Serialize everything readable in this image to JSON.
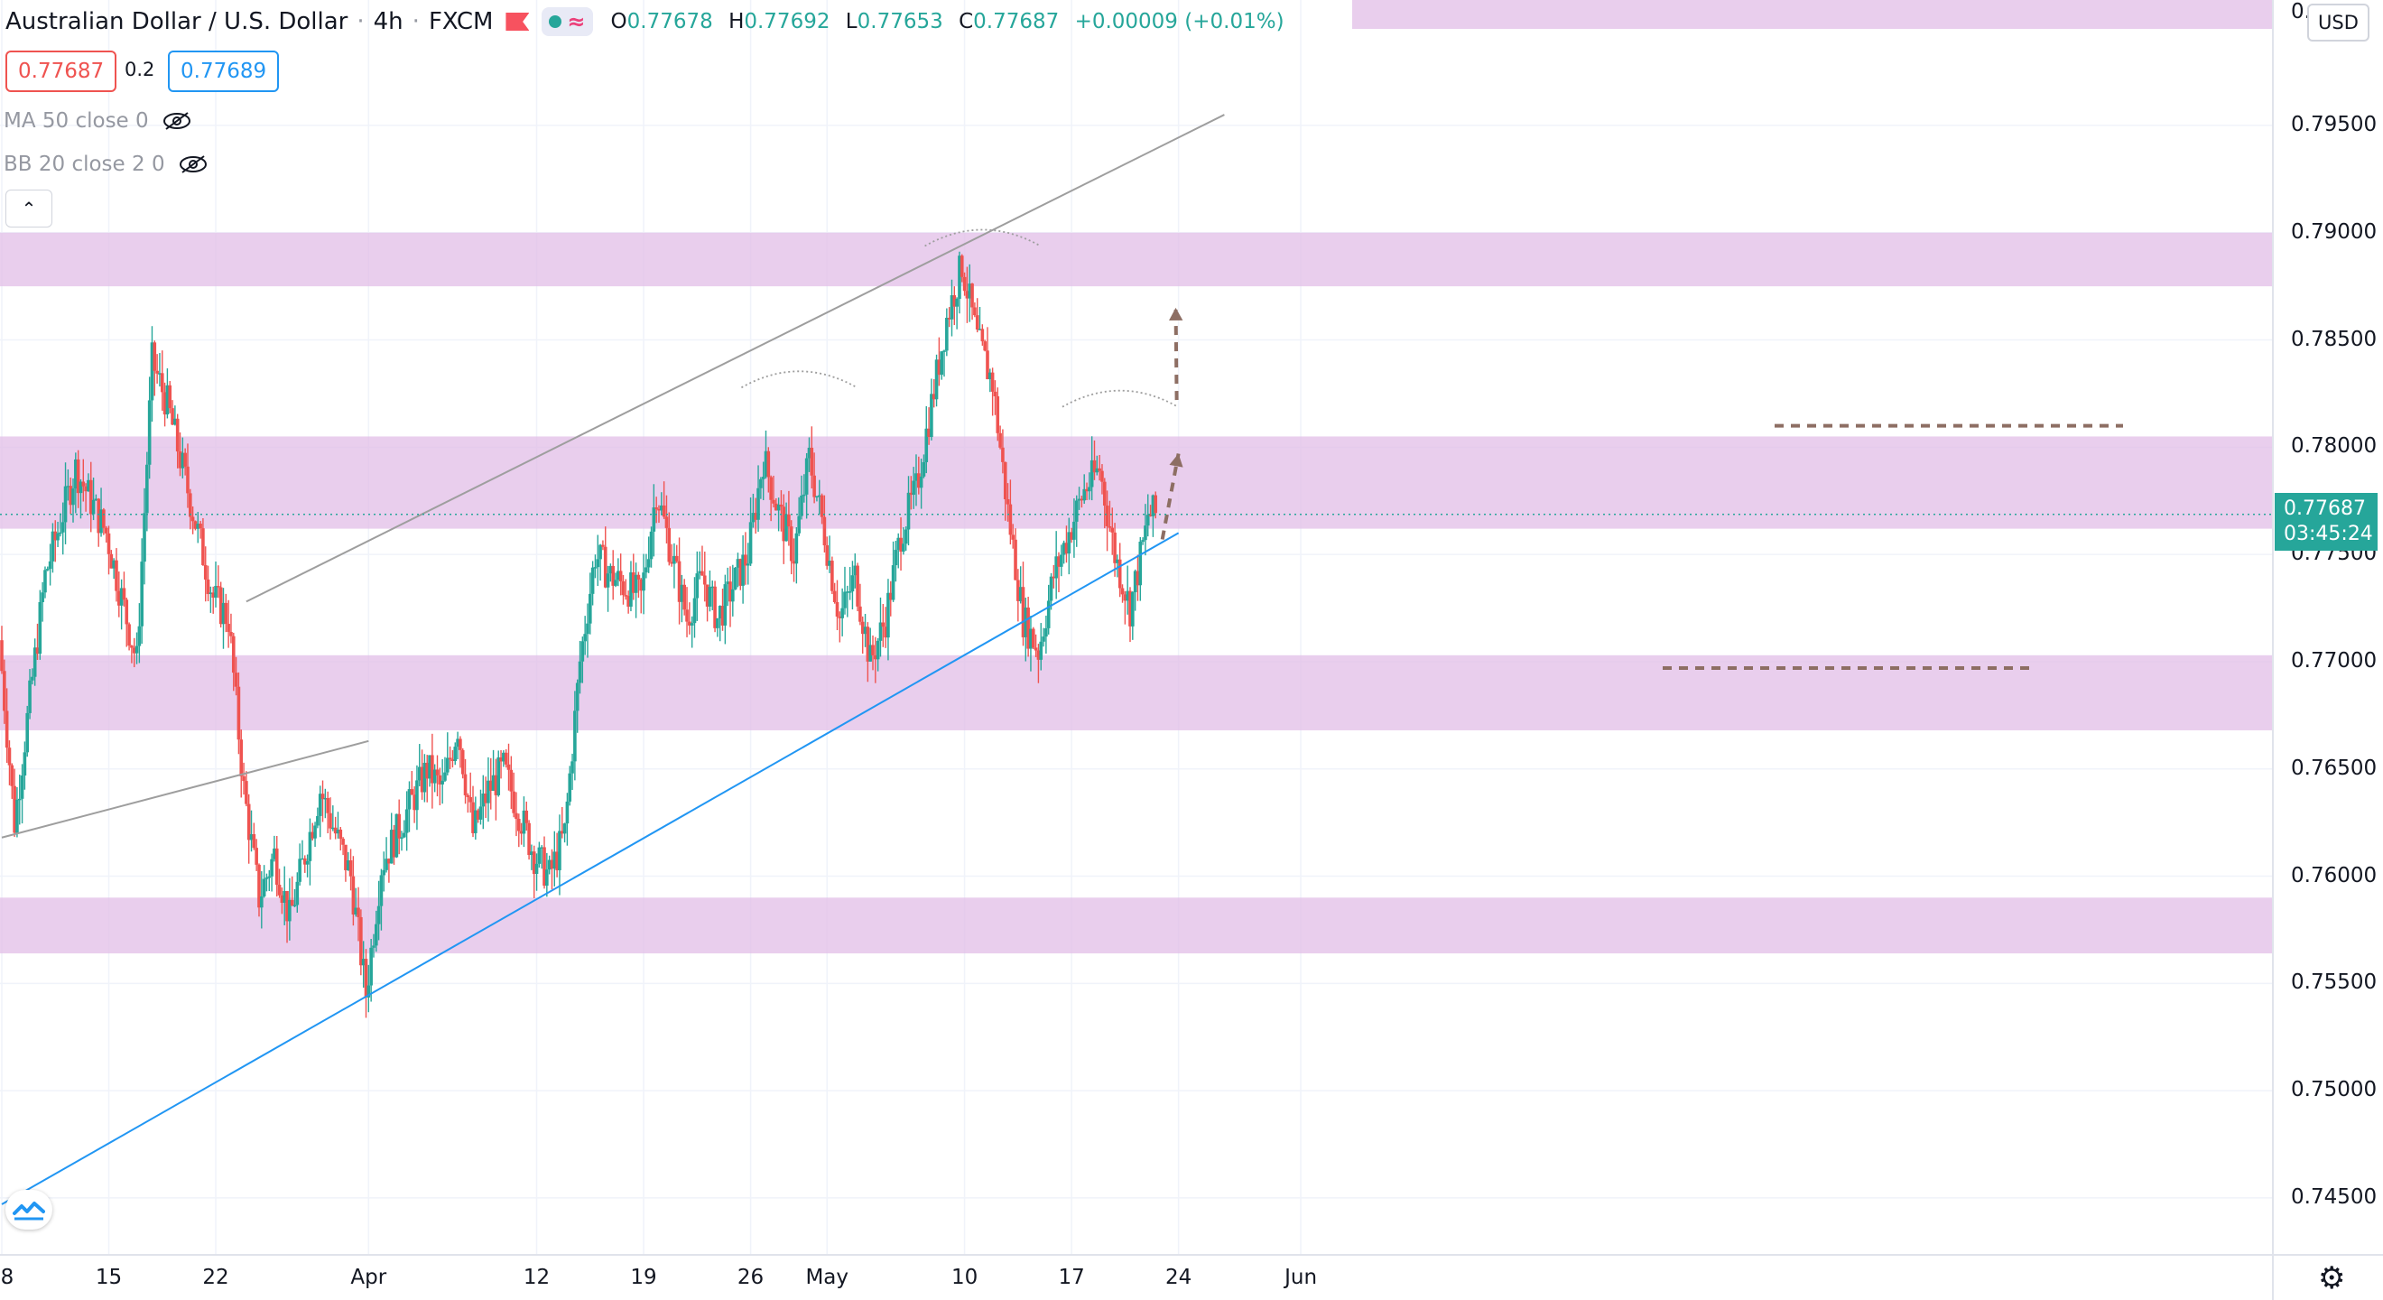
{
  "header": {
    "symbol": "Australian Dollar / U.S. Dollar",
    "interval": "4h",
    "exchange": "FXCM",
    "ohlc": {
      "o_label": "O",
      "o": "0.77678",
      "h_label": "H",
      "h": "0.77692",
      "l_label": "L",
      "l": "0.77653",
      "c_label": "C",
      "c": "0.77687",
      "change": "+0.00009 (+0.01%)"
    }
  },
  "quote": {
    "sell": "0.77687",
    "spread": "0.2",
    "buy": "0.77689"
  },
  "indicators": [
    {
      "label": "MA 50 close 0"
    },
    {
      "label": "BB 20 close 2 0"
    }
  ],
  "price_axis": {
    "currency": "USD",
    "top_clipped": "0.",
    "current_price": "0.77687",
    "countdown": "03:45:24",
    "current_price_color": "#26a69a"
  },
  "colors": {
    "up": "#26a69a",
    "down": "#ef5350",
    "zone": "#e1bee7",
    "trend_blue": "#2196f3",
    "trend_gray": "#9e9e9e",
    "annotation": "#8d6e63"
  },
  "chart_data": {
    "type": "candlestick",
    "symbol": "AUDUSD",
    "timeframe": "4h",
    "y_ticks": [
      "0.79500",
      "0.79000",
      "0.78500",
      "0.78000",
      "0.77500",
      "0.77000",
      "0.76500",
      "0.76000",
      "0.75500",
      "0.75000",
      "0.74500"
    ],
    "x_ticks": [
      "8",
      "15",
      "22",
      "Apr",
      "12",
      "19",
      "26",
      "May",
      "10",
      "17",
      "24",
      "Jun"
    ],
    "ylim": [
      0.7432,
      0.8003
    ],
    "zones": [
      [
        0.7875,
        0.79
      ],
      [
        0.7762,
        0.7805
      ],
      [
        0.7668,
        0.7703
      ],
      [
        0.7564,
        0.759
      ],
      [
        0.7995,
        0.801
      ]
    ],
    "swing_points": [
      [
        "Mar 8",
        0.771
      ],
      [
        "Mar 9",
        0.7625
      ],
      [
        "Mar 11",
        0.774
      ],
      [
        "Mar 13",
        0.779
      ],
      [
        "Mar 15",
        0.776
      ],
      [
        "Mar 17",
        0.77
      ],
      [
        "Mar 18",
        0.784
      ],
      [
        "Mar 19",
        0.782
      ],
      [
        "Mar 22",
        0.773
      ],
      [
        "Mar 23",
        0.772
      ],
      [
        "Mar 24",
        0.764
      ],
      [
        "Mar 25",
        0.759
      ],
      [
        "Mar 26",
        0.761
      ],
      [
        "Mar 27",
        0.758
      ],
      [
        "Mar 29",
        0.764
      ],
      [
        "Mar 30",
        0.762
      ],
      [
        "Mar 31",
        0.76
      ],
      [
        "Apr 1",
        0.7545
      ],
      [
        "Apr 2",
        0.7605
      ],
      [
        "Apr 5",
        0.765
      ],
      [
        "Apr 6",
        0.764
      ],
      [
        "Apr 7",
        0.767
      ],
      [
        "Apr 8",
        0.762
      ],
      [
        "Apr 9",
        0.764
      ],
      [
        "Apr 10",
        0.765
      ],
      [
        "Apr 12",
        0.761
      ],
      [
        "Apr 13",
        0.76
      ],
      [
        "Apr 14",
        0.762
      ],
      [
        "Apr 15",
        0.77
      ],
      [
        "Apr 16",
        0.775
      ],
      [
        "Apr 17",
        0.774
      ],
      [
        "Apr 19",
        0.773
      ],
      [
        "Apr 20",
        0.778
      ],
      [
        "Apr 21",
        0.775
      ],
      [
        "Apr 22",
        0.772
      ],
      [
        "Apr 23",
        0.774
      ],
      [
        "Apr 24",
        0.772
      ],
      [
        "Apr 26",
        0.775
      ],
      [
        "Apr 27",
        0.7795
      ],
      [
        "Apr 28",
        0.777
      ],
      [
        "Apr 29",
        0.775
      ],
      [
        "Apr 30",
        0.7795
      ],
      [
        "May 1",
        0.776
      ],
      [
        "May 2",
        0.772
      ],
      [
        "May 3",
        0.774
      ],
      [
        "May 4",
        0.77
      ],
      [
        "May 5",
        0.772
      ],
      [
        "May 6",
        0.776
      ],
      [
        "May 7",
        0.778
      ],
      [
        "May 8",
        0.782
      ],
      [
        "May 9",
        0.786
      ],
      [
        "May 10",
        0.7885
      ],
      [
        "May 11",
        0.785
      ],
      [
        "May 12",
        0.783
      ],
      [
        "May 13",
        0.777
      ],
      [
        "May 14",
        0.772
      ],
      [
        "May 15",
        0.7705
      ],
      [
        "May 16",
        0.774
      ],
      [
        "May 17",
        0.776
      ],
      [
        "May 18",
        0.778
      ],
      [
        "May 19",
        0.779
      ],
      [
        "May 20",
        0.775
      ],
      [
        "May 21",
        0.7725
      ],
      [
        "May 22",
        0.776
      ],
      [
        "May 22",
        0.77687
      ]
    ],
    "trendlines": [
      {
        "name": "blue support",
        "from": [
          "Mar 8",
          0.7447
        ],
        "to": [
          "May 24",
          0.776
        ]
      },
      {
        "name": "gray upper",
        "from": [
          "Mar 24",
          0.7728
        ],
        "to": [
          "May 27",
          0.7955
        ]
      },
      {
        "name": "gray lower",
        "from": [
          "Mar 8",
          0.7618
        ],
        "to": [
          "Apr 1",
          0.7663
        ]
      }
    ],
    "levels": [
      {
        "name": "neckline",
        "value": 0.781,
        "style": "dashed"
      },
      {
        "name": "support",
        "value": 0.7697,
        "style": "dashed"
      }
    ],
    "annotations": [
      {
        "name": "arrow up 1",
        "from": [
          "May 23",
          0.7757
        ],
        "to": [
          "May 24",
          0.7797
        ]
      },
      {
        "name": "arrow up 2",
        "from": [
          "May 24",
          0.7822
        ],
        "to": [
          "May 25",
          0.7865
        ]
      },
      {
        "name": "arc 1",
        "center": [
          "Apr 28",
          0.7832
        ]
      },
      {
        "name": "arc 2",
        "center": [
          "May 10",
          0.7898
        ]
      },
      {
        "name": "arc 3",
        "center": [
          "May 19",
          0.7823
        ]
      }
    ]
  }
}
